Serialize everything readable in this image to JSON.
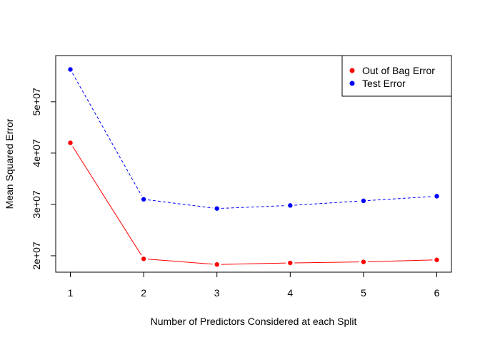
{
  "chart_data": {
    "type": "line",
    "title": "",
    "xlabel": "Number of Predictors Considered at each Split",
    "ylabel": "Mean Squared Error",
    "x": [
      1,
      2,
      3,
      4,
      5,
      6
    ],
    "xticks": [
      1,
      2,
      3,
      4,
      5,
      6
    ],
    "yticks": [
      20000000,
      30000000,
      40000000,
      50000000
    ],
    "ytick_labels": [
      "2e+07",
      "3e+07",
      "4e+07",
      "5e+07"
    ],
    "xlim": [
      0.8,
      6.2
    ],
    "ylim": [
      16800000,
      59000000
    ],
    "grid": false,
    "legend_position": "top-right",
    "series": [
      {
        "name": "Out of Bag Error",
        "color": "#ff0000",
        "line_style": "solid",
        "values": [
          42000000,
          19400000,
          18300000,
          18600000,
          18800000,
          19200000
        ]
      },
      {
        "name": "Test Error",
        "color": "#0000ff",
        "line_style": "dashed",
        "values": [
          56300000,
          31000000,
          29200000,
          29800000,
          30700000,
          31600000
        ]
      }
    ]
  }
}
